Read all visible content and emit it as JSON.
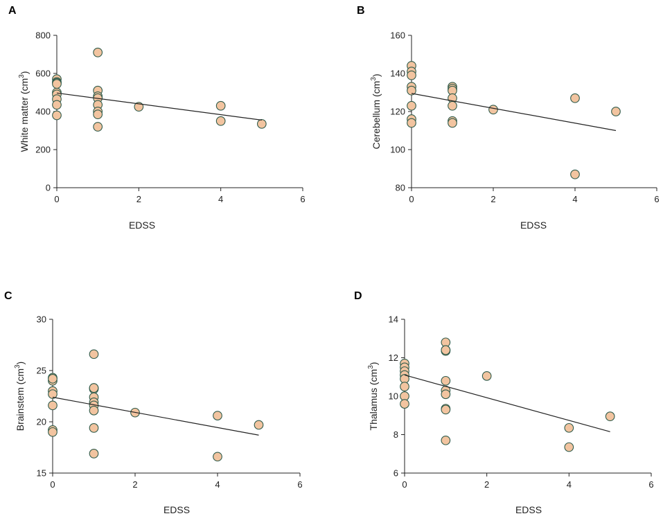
{
  "figure": {
    "point_color": "#F2C4A0",
    "point_edge_color": "#2E5A4A",
    "line_color": "#222222"
  },
  "chart_data": [
    {
      "panel": "A",
      "type": "scatter",
      "xlabel": "EDSS",
      "ylabel": {
        "main": "White matter (cm",
        "sup": "3",
        "end": ")"
      },
      "xlim": [
        0,
        6
      ],
      "ylim": [
        0,
        800
      ],
      "xticks": [
        "0",
        "2",
        "4",
        "6"
      ],
      "yticks": [
        "0",
        "200",
        "400",
        "600",
        "800"
      ],
      "x": [
        0,
        0,
        0,
        0,
        0,
        0,
        0,
        0,
        0,
        1,
        1,
        1,
        1,
        1,
        1,
        1,
        1,
        2,
        4,
        4,
        5
      ],
      "y": [
        570,
        555,
        550,
        500,
        490,
        465,
        435,
        380,
        545,
        710,
        510,
        480,
        470,
        435,
        400,
        385,
        320,
        425,
        430,
        350,
        335
      ],
      "trend": {
        "x": [
          0,
          5
        ],
        "y": [
          497,
          355
        ]
      }
    },
    {
      "panel": "B",
      "type": "scatter",
      "xlabel": "EDSS",
      "ylabel": {
        "main": "Cerebellum (cm",
        "sup": "3",
        "end": ")"
      },
      "xlim": [
        0,
        6
      ],
      "ylim": [
        80,
        160
      ],
      "xticks": [
        "0",
        "2",
        "4",
        "6"
      ],
      "yticks": [
        "80",
        "100",
        "120",
        "140",
        "160"
      ],
      "x": [
        0,
        0,
        0,
        0,
        0,
        0,
        0,
        0,
        1,
        1,
        1,
        1,
        1,
        1,
        1,
        2,
        4,
        4,
        5
      ],
      "y": [
        144,
        141,
        139,
        133,
        131,
        123,
        116,
        114,
        133,
        132,
        131,
        127,
        123,
        115,
        114,
        121,
        127,
        87,
        120
      ],
      "trend": {
        "x": [
          0,
          5
        ],
        "y": [
          129.5,
          110
        ]
      }
    },
    {
      "panel": "C",
      "type": "scatter",
      "xlabel": "EDSS",
      "ylabel": {
        "main": "Brainstem (cm",
        "sup": "3",
        "end": ")"
      },
      "xlim": [
        0,
        6
      ],
      "ylim": [
        15,
        30
      ],
      "xticks": [
        "0",
        "2",
        "4",
        "6"
      ],
      "yticks": [
        "15",
        "20",
        "25",
        "30"
      ],
      "x": [
        0,
        0,
        0,
        0,
        0,
        0,
        0,
        0,
        1,
        1,
        1,
        1,
        1,
        1,
        1,
        1,
        1,
        1,
        2,
        4,
        4,
        5
      ],
      "y": [
        24.3,
        24.0,
        23.0,
        22.7,
        21.6,
        19.2,
        19.0,
        24.2,
        26.6,
        23.3,
        23.2,
        22.4,
        21.9,
        21.6,
        21.1,
        19.4,
        16.9,
        23.3,
        20.9,
        20.6,
        16.6,
        19.7
      ],
      "trend": {
        "x": [
          0,
          5
        ],
        "y": [
          22.4,
          18.7
        ]
      }
    },
    {
      "panel": "D",
      "type": "scatter",
      "xlabel": "EDSS",
      "ylabel": {
        "main": "Thalamus (cm",
        "sup": "3",
        "end": ")"
      },
      "xlim": [
        0,
        6
      ],
      "ylim": [
        6,
        14
      ],
      "xticks": [
        "0",
        "2",
        "4",
        "6"
      ],
      "yticks": [
        "6",
        "8",
        "10",
        "12",
        "14"
      ],
      "x": [
        0,
        0,
        0,
        0,
        0,
        0,
        0,
        0,
        1,
        1,
        1,
        1,
        1,
        1,
        1,
        1,
        1,
        1,
        2,
        4,
        4,
        5
      ],
      "y": [
        11.7,
        11.5,
        11.3,
        11.1,
        10.9,
        10.5,
        10.0,
        9.6,
        12.8,
        12.4,
        12.35,
        10.8,
        10.3,
        10.1,
        9.35,
        9.3,
        7.7,
        12.4,
        11.05,
        8.35,
        7.35,
        8.95
      ],
      "trend": {
        "x": [
          0,
          5
        ],
        "y": [
          11.1,
          8.15
        ]
      }
    }
  ]
}
